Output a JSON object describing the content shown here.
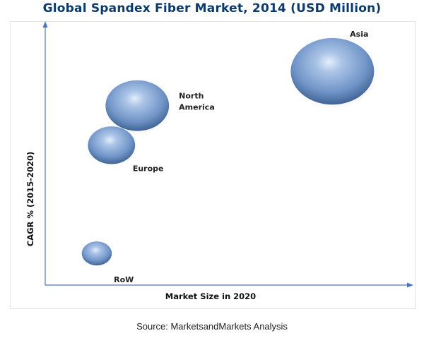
{
  "title": "Global Spandex Fiber Market, 2014 (USD Million)",
  "source": "Source:  MarketsandMarkets Analysis",
  "chart_data": {
    "type": "scatter",
    "subtype": "bubble",
    "title": "Global Spandex Fiber Market, 2014 (USD Million)",
    "xlabel": "Market Size in 2020",
    "ylabel": "CAGR % (2015-2020)",
    "x_ticks": "none",
    "y_ticks": "none",
    "grid": false,
    "xlim": [
      0,
      100
    ],
    "ylim": [
      0,
      100
    ],
    "colors": {
      "bubble": "#7b9fcf",
      "bubble_dark": "#3f6495",
      "bubble_light": "#dbe8f7",
      "axis": "#4a78c0",
      "title": "#0b3a6b"
    },
    "points": [
      {
        "label": "Asia",
        "label_lines": [
          "Asia"
        ],
        "x": 78,
        "y": 81,
        "size": 100
      },
      {
        "label": "North America",
        "label_lines": [
          "North",
          "America"
        ],
        "x": 25,
        "y": 68,
        "size": 58
      },
      {
        "label": "Europe",
        "label_lines": [
          "Europe"
        ],
        "x": 18,
        "y": 53,
        "size": 32
      },
      {
        "label": "RoW",
        "label_lines": [
          "RoW"
        ],
        "x": 14,
        "y": 12,
        "size": 13
      }
    ]
  }
}
